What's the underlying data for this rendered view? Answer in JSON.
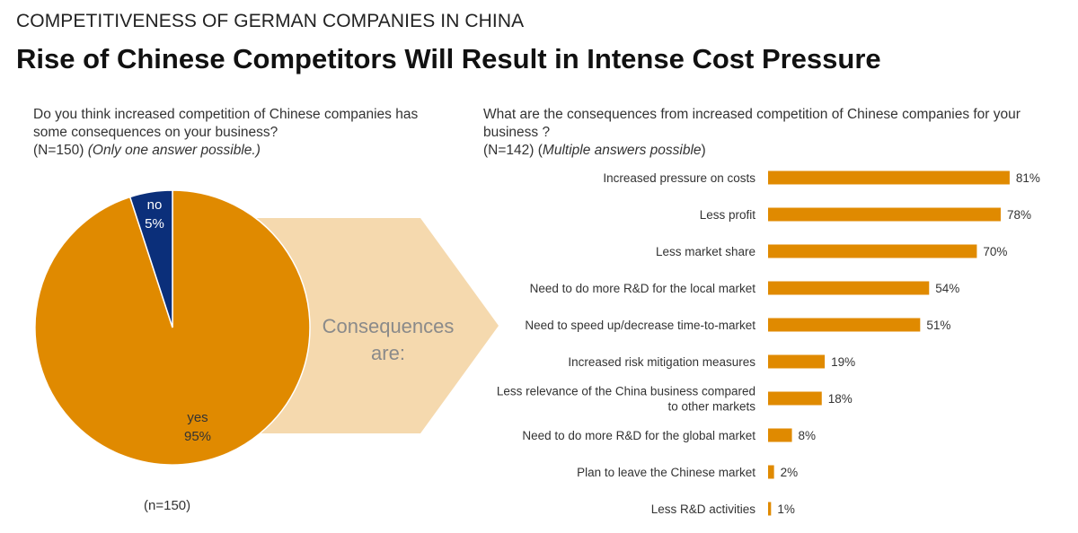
{
  "header": {
    "supertitle": "COMPETITIVENESS OF GERMAN COMPANIES IN CHINA",
    "title": "Rise of Chinese Competitors Will Result in Intense Cost Pressure"
  },
  "left_question": {
    "line1": "Do you think increased competition of Chinese companies has",
    "line2": "some consequences on your business?",
    "sample": "(N=150)",
    "note": "(Only one answer possible.)"
  },
  "right_question": {
    "line1": "What are the consequences from increased competition of Chinese companies for your",
    "line2": "business ?",
    "sample": "(N=142)",
    "note_open": "(",
    "note": "Multiple answers possible",
    "note_close": ")"
  },
  "arrow_text": [
    "Consequences",
    "are:"
  ],
  "footnote": "(n=150)",
  "colors": {
    "orange": "#E08A00",
    "navy": "#0B2F7A",
    "arrow": "#F5D9AE",
    "arrow_text": "#8a8a8a"
  },
  "chart_data": [
    {
      "type": "pie",
      "categories": [
        "yes",
        "no"
      ],
      "values": [
        95,
        5
      ],
      "value_labels": [
        "95%",
        "5%"
      ],
      "colors": [
        "#E08A00",
        "#0B2F7A"
      ]
    },
    {
      "type": "bar",
      "orientation": "horizontal",
      "categories": [
        [
          "Increased pressure on costs"
        ],
        [
          "Less profit"
        ],
        [
          "Less market share"
        ],
        [
          "Need to do more R&D for the local market"
        ],
        [
          "Need to speed up/decrease time-to-market"
        ],
        [
          "Increased risk mitigation measures"
        ],
        [
          "Less relevance of the China business compared",
          "to other markets"
        ],
        [
          "Need to do more R&D for the global market"
        ],
        [
          "Plan to leave the Chinese market"
        ],
        [
          "Less R&D activities"
        ]
      ],
      "values": [
        81,
        78,
        70,
        54,
        51,
        19,
        18,
        8,
        2,
        1
      ],
      "value_labels": [
        "81%",
        "78%",
        "70%",
        "54%",
        "51%",
        "19%",
        "18%",
        "8%",
        "2%",
        "1%"
      ],
      "color": "#E08A00"
    }
  ]
}
